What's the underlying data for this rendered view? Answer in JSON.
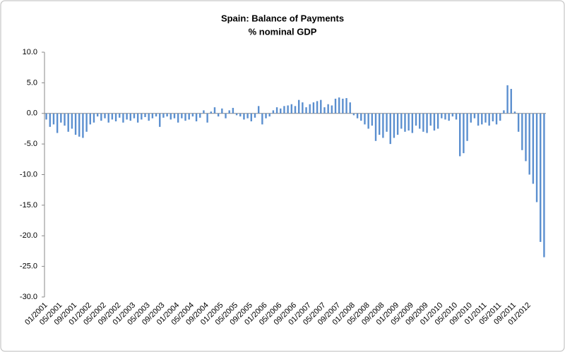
{
  "chart_data": {
    "type": "bar",
    "title": "Spain: Balance of Payments",
    "subtitle": "% nominal GDP",
    "color": "#5b8fcf",
    "categories": [
      "01/2001",
      null,
      null,
      null,
      "05/2001",
      null,
      null,
      null,
      "09/2001",
      null,
      null,
      null,
      "01/2002",
      null,
      null,
      null,
      "05/2002",
      null,
      null,
      null,
      "09/2002",
      null,
      null,
      null,
      "01/2003",
      null,
      null,
      null,
      "05/2003",
      null,
      null,
      null,
      "09/2003",
      null,
      null,
      null,
      "01/2004",
      null,
      null,
      null,
      "05/2004",
      null,
      null,
      null,
      "09/2004",
      null,
      null,
      null,
      "01/2005",
      null,
      null,
      null,
      "05/2005",
      null,
      null,
      null,
      "09/2005",
      null,
      null,
      null,
      "01/2006",
      null,
      null,
      null,
      "05/2006",
      null,
      null,
      null,
      "09/2006",
      null,
      null,
      null,
      "01/2007",
      null,
      null,
      null,
      "05/2007",
      null,
      null,
      null,
      "09/2007",
      null,
      null,
      null,
      "01/2008",
      null,
      null,
      null,
      "05/2008",
      null,
      null,
      null,
      "09/2008",
      null,
      null,
      null,
      "01/2009",
      null,
      null,
      null,
      "05/2009",
      null,
      null,
      null,
      "09/2009",
      null,
      null,
      null,
      "01/2010",
      null,
      null,
      null,
      "05/2010",
      null,
      null,
      null,
      "09/2010",
      null,
      null,
      null,
      "01/2011",
      null,
      null,
      null,
      "05/2011",
      null,
      null,
      null,
      "09/2011",
      null,
      null,
      null,
      "01/2012",
      null,
      null,
      null,
      null
    ],
    "values": [
      -1.0,
      -2.2,
      -1.8,
      -3.2,
      -1.5,
      -2.0,
      -3.0,
      -2.5,
      -3.5,
      -3.8,
      -4.0,
      -3.0,
      -1.8,
      -1.5,
      -0.5,
      -1.2,
      -0.8,
      -1.5,
      -1.0,
      -1.3,
      -0.7,
      -1.5,
      -1.0,
      -1.2,
      -0.8,
      -1.5,
      -1.0,
      -0.6,
      -1.2,
      -0.8,
      -0.5,
      -2.2,
      -0.7,
      -0.5,
      -1.0,
      -0.8,
      -1.5,
      -0.8,
      -1.2,
      -1.0,
      -0.5,
      -1.3,
      -0.7,
      0.5,
      -1.5,
      0.3,
      1.0,
      -0.5,
      0.8,
      -0.8,
      0.5,
      0.9,
      -0.3,
      -0.5,
      -1.0,
      -0.8,
      -1.3,
      -0.7,
      1.2,
      -1.8,
      -0.8,
      -0.5,
      0.5,
      1.0,
      0.8,
      1.2,
      1.3,
      1.5,
      1.2,
      2.2,
      1.8,
      1.0,
      1.5,
      1.8,
      2.0,
      2.2,
      1.0,
      1.5,
      1.3,
      2.4,
      2.6,
      2.4,
      2.5,
      1.8,
      -0.3,
      -0.8,
      -1.2,
      -1.8,
      -2.5,
      -2.0,
      -4.5,
      -3.5,
      -4.0,
      -3.0,
      -5.0,
      -4.0,
      -3.5,
      -2.5,
      -3.0,
      -2.8,
      -3.2,
      -2.0,
      -2.5,
      -3.0,
      -3.2,
      -2.0,
      -2.8,
      -2.5,
      -0.8,
      -1.0,
      -1.2,
      -0.5,
      -1.0,
      -7.0,
      -6.5,
      -4.5,
      -1.5,
      -0.8,
      -2.0,
      -1.8,
      -1.5,
      -2.0,
      -1.3,
      -1.8,
      -1.2,
      0.5,
      4.6,
      4.0,
      0.3,
      -3.0,
      -6.0,
      -7.8,
      -10.0,
      -11.5,
      -14.5,
      -21.0,
      -23.5
    ],
    "ylim": [
      -30,
      10
    ],
    "yticks": [
      {
        "value": -30,
        "label": "-30.0"
      },
      {
        "value": -25,
        "label": "-25.0"
      },
      {
        "value": -20,
        "label": "-20.0"
      },
      {
        "value": -15,
        "label": "-15.0"
      },
      {
        "value": -10,
        "label": "-10.0"
      },
      {
        "value": -5,
        "label": "-5.0"
      },
      {
        "value": 0,
        "label": "0.0"
      },
      {
        "value": 5,
        "label": "5.0"
      },
      {
        "value": 10,
        "label": "10.0"
      }
    ]
  }
}
